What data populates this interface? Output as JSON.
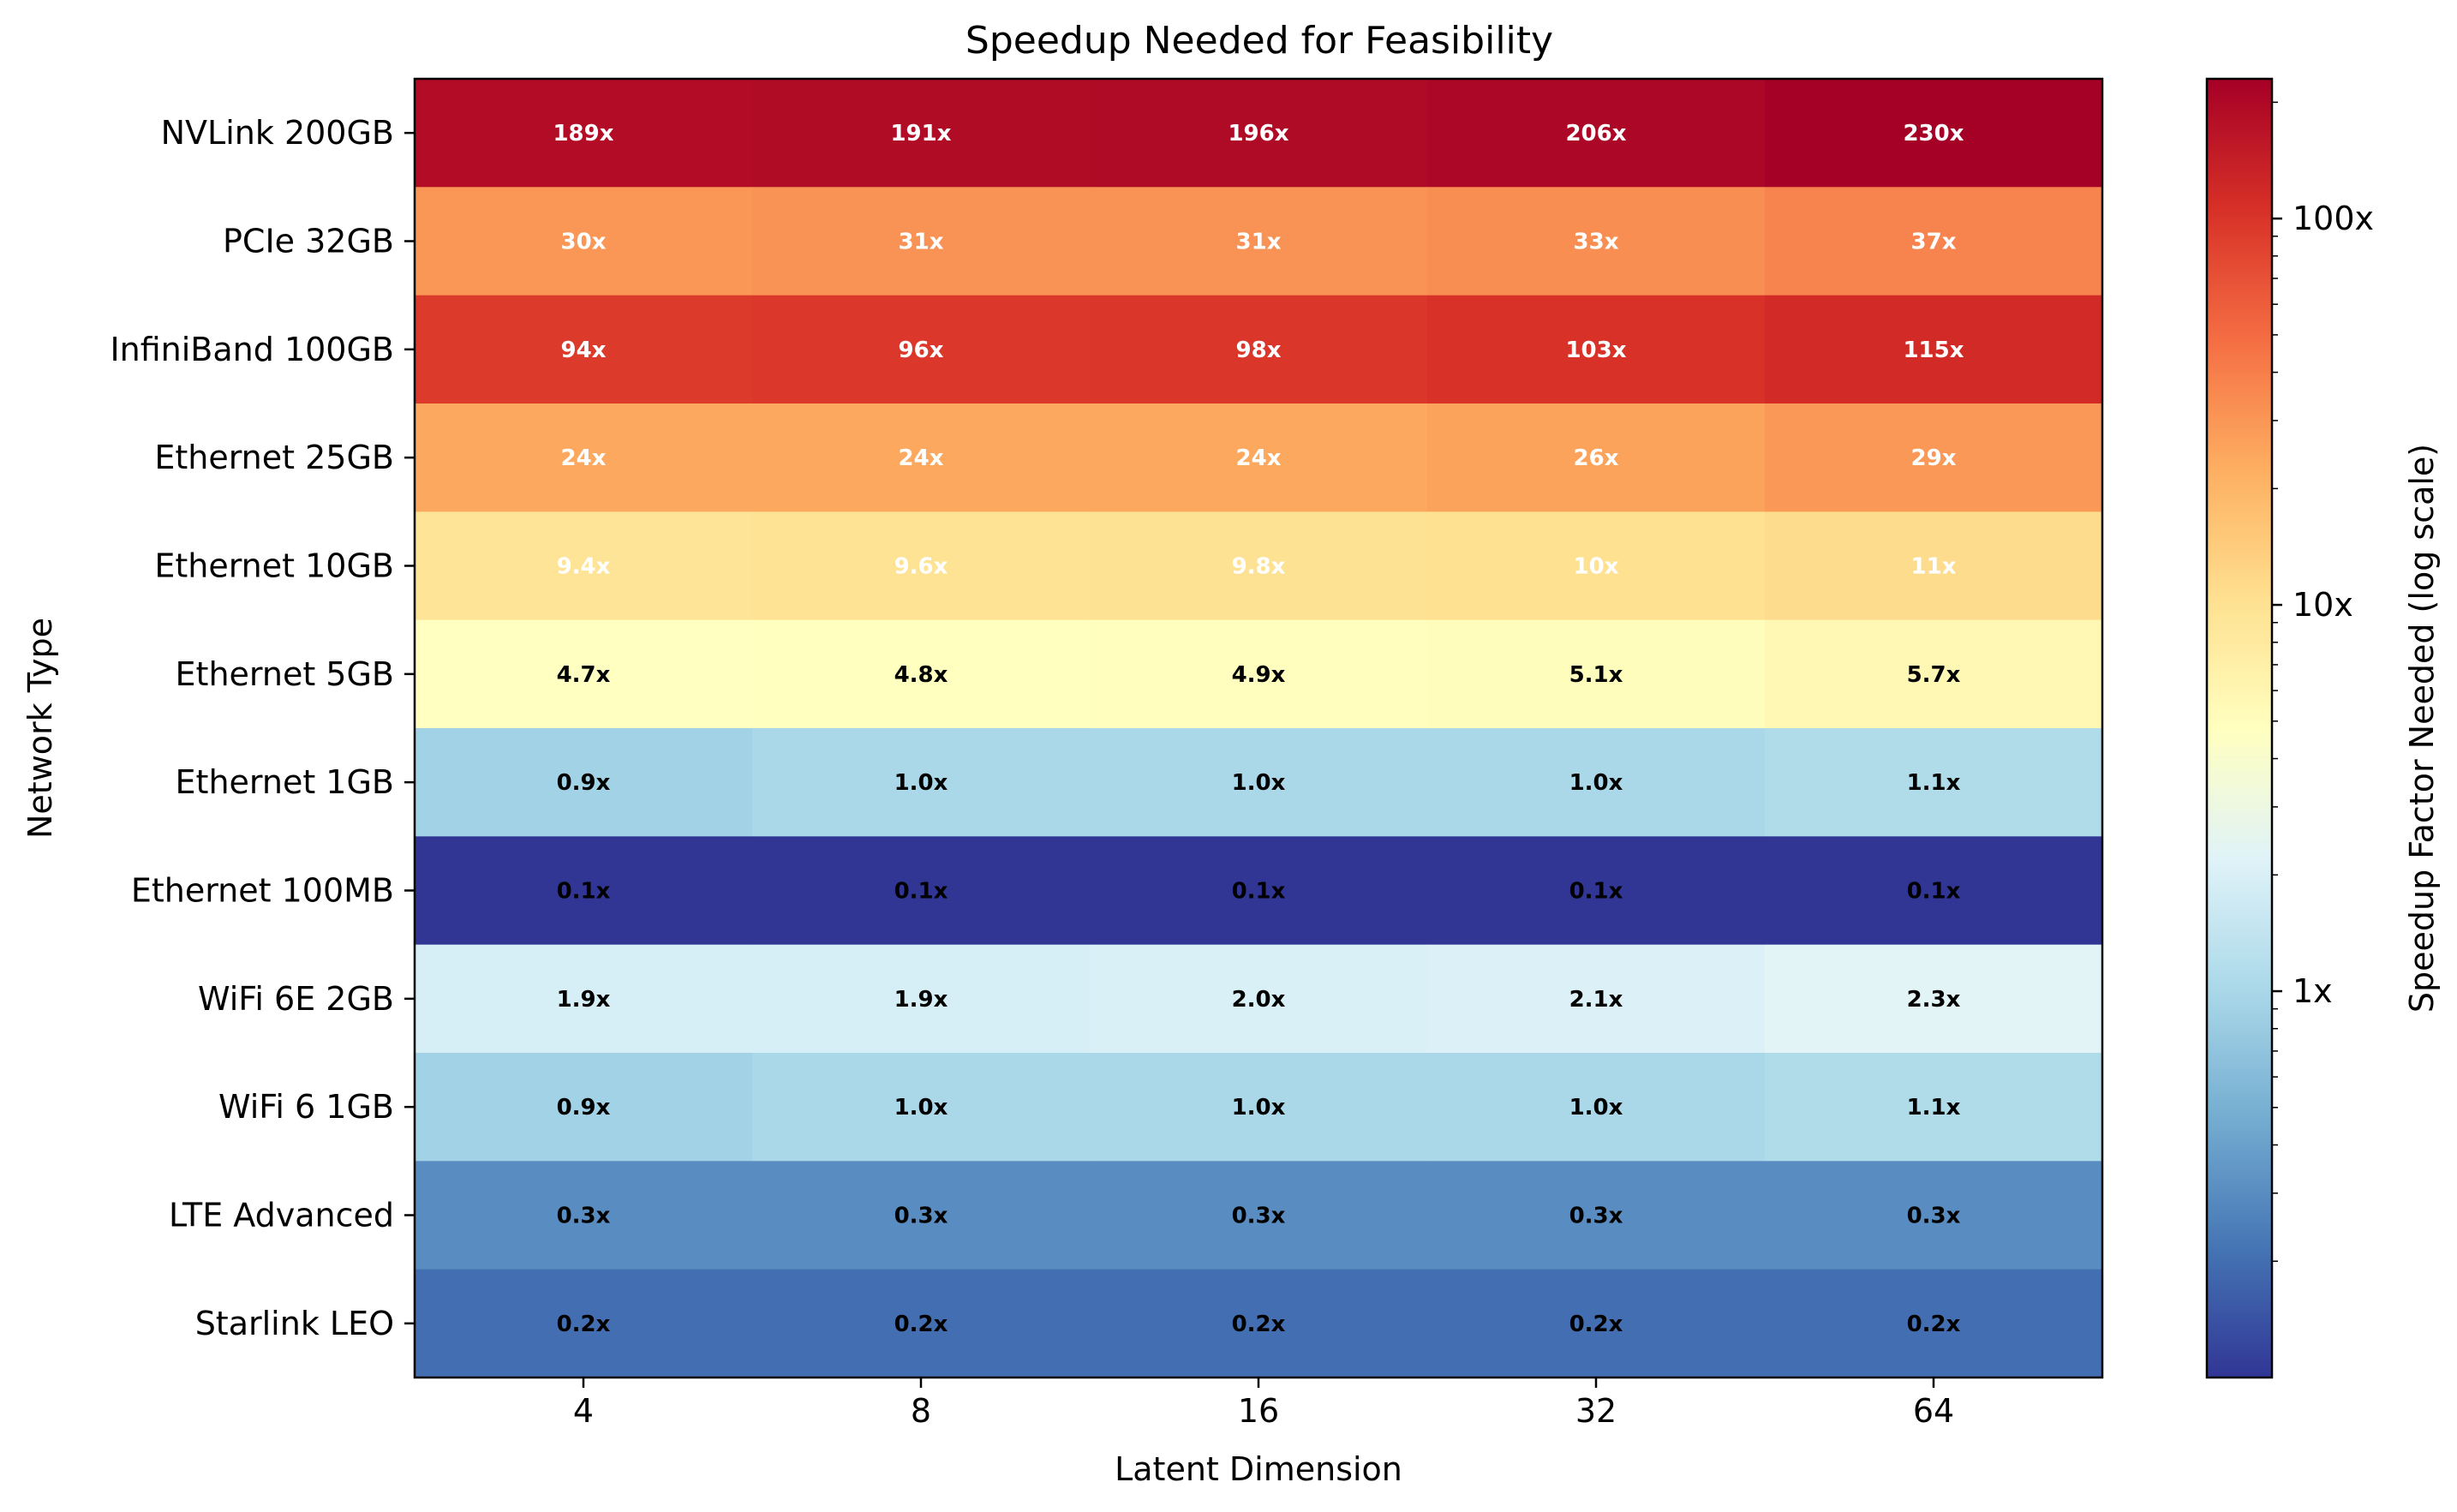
{
  "chart_data": {
    "type": "heatmap",
    "title": "Speedup Needed for Feasibility",
    "xlabel": "Latent Dimension",
    "ylabel": "Network Type",
    "x_categories": [
      "4",
      "8",
      "16",
      "32",
      "64"
    ],
    "y_categories": [
      "NVLink 200GB",
      "PCIe 32GB",
      "InfiniBand 100GB",
      "Ethernet 25GB",
      "Ethernet 10GB",
      "Ethernet 5GB",
      "Ethernet 1GB",
      "Ethernet 100MB",
      "WiFi 6E 2GB",
      "WiFi 6 1GB",
      "LTE Advanced",
      "Starlink LEO"
    ],
    "values": [
      [
        189,
        191,
        196,
        206,
        230
      ],
      [
        30,
        31,
        31,
        33,
        37
      ],
      [
        94,
        96,
        98,
        103,
        115
      ],
      [
        24,
        24,
        24,
        26,
        29
      ],
      [
        9.4,
        9.6,
        9.8,
        10,
        11
      ],
      [
        4.7,
        4.8,
        4.9,
        5.1,
        5.7
      ],
      [
        0.9,
        1.0,
        1.0,
        1.0,
        1.1
      ],
      [
        0.1,
        0.1,
        0.1,
        0.1,
        0.1
      ],
      [
        1.9,
        1.9,
        2.0,
        2.1,
        2.3
      ],
      [
        0.9,
        1.0,
        1.0,
        1.0,
        1.1
      ],
      [
        0.3,
        0.3,
        0.3,
        0.3,
        0.3
      ],
      [
        0.2,
        0.2,
        0.2,
        0.2,
        0.2
      ]
    ],
    "cell_labels": [
      [
        "189x",
        "191x",
        "196x",
        "206x",
        "230x"
      ],
      [
        "30x",
        "31x",
        "31x",
        "33x",
        "37x"
      ],
      [
        "94x",
        "96x",
        "98x",
        "103x",
        "115x"
      ],
      [
        "24x",
        "24x",
        "24x",
        "26x",
        "29x"
      ],
      [
        "9.4x",
        "9.6x",
        "9.8x",
        "10x",
        "11x"
      ],
      [
        "4.7x",
        "4.8x",
        "4.9x",
        "5.1x",
        "5.7x"
      ],
      [
        "0.9x",
        "1.0x",
        "1.0x",
        "1.0x",
        "1.1x"
      ],
      [
        "0.1x",
        "0.1x",
        "0.1x",
        "0.1x",
        "0.1x"
      ],
      [
        "1.9x",
        "1.9x",
        "2.0x",
        "2.1x",
        "2.3x"
      ],
      [
        "0.9x",
        "1.0x",
        "1.0x",
        "1.0x",
        "1.1x"
      ],
      [
        "0.3x",
        "0.3x",
        "0.3x",
        "0.3x",
        "0.3x"
      ],
      [
        "0.2x",
        "0.2x",
        "0.2x",
        "0.2x",
        "0.2x"
      ]
    ],
    "colormap": "RdYlBu_r",
    "color_scale": "log",
    "color_range": [
      0.1,
      230
    ],
    "colorbar": {
      "label": "Speedup Factor Needed (log scale)",
      "ticks": [
        1,
        10,
        100
      ],
      "tick_labels": [
        "1x",
        "10x",
        "100x"
      ]
    },
    "grid": false,
    "legend": "none"
  }
}
